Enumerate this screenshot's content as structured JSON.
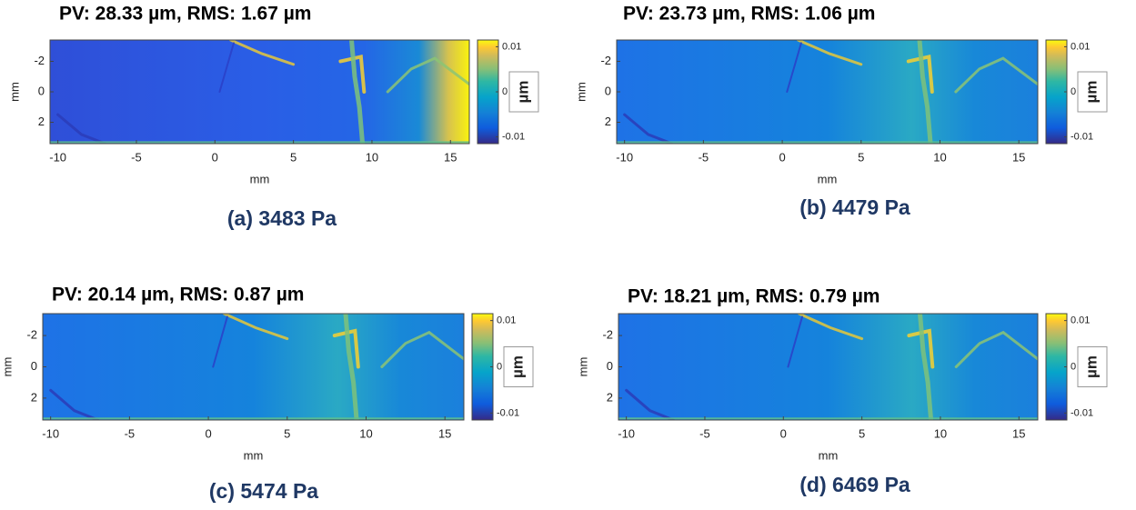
{
  "chart_data": [
    {
      "type": "heatmap",
      "title": "PV: 28.33 µm, RMS: 1.67 µm",
      "caption": "(a) 3483 Pa",
      "xlabel": "mm",
      "ylabel": "mm",
      "xlim": [
        -10.5,
        16.2
      ],
      "xticks": [
        -10,
        -5,
        0,
        5,
        10,
        15
      ],
      "ylim": [
        -3.4,
        3.4
      ],
      "yticks": [
        -2,
        0,
        2
      ],
      "y_reversed": true,
      "colorbar": {
        "label": "µm",
        "clim": [
          -0.0115,
          0.0115
        ],
        "ticks": [
          -0.01,
          0,
          0.01
        ]
      }
    },
    {
      "type": "heatmap",
      "title": "PV: 23.73 µm, RMS: 1.06 µm",
      "caption": "(b) 4479 Pa",
      "xlabel": "mm",
      "ylabel": "mm",
      "xlim": [
        -10.5,
        16.2
      ],
      "xticks": [
        -10,
        -5,
        0,
        5,
        10,
        15
      ],
      "ylim": [
        -3.4,
        3.4
      ],
      "yticks": [
        -2,
        0,
        2
      ],
      "y_reversed": true,
      "colorbar": {
        "label": "µm",
        "clim": [
          -0.0115,
          0.0115
        ],
        "ticks": [
          -0.01,
          0,
          0.01
        ]
      }
    },
    {
      "type": "heatmap",
      "title": "PV: 20.14 µm, RMS: 0.87 µm",
      "caption": "(c) 5474 Pa",
      "xlabel": "mm",
      "ylabel": "mm",
      "xlim": [
        -10.5,
        16.2
      ],
      "xticks": [
        -10,
        -5,
        0,
        5,
        10,
        15
      ],
      "ylim": [
        -3.4,
        3.4
      ],
      "yticks": [
        -2,
        0,
        2
      ],
      "y_reversed": true,
      "colorbar": {
        "label": "µm",
        "clim": [
          -0.0115,
          0.0115
        ],
        "ticks": [
          -0.01,
          0,
          0.01
        ]
      }
    },
    {
      "type": "heatmap",
      "title": "PV: 18.21 µm, RMS: 0.79 µm",
      "caption": "(d) 6469 Pa",
      "xlabel": "mm",
      "ylabel": "mm",
      "xlim": [
        -10.5,
        16.2
      ],
      "xticks": [
        -10,
        -5,
        0,
        5,
        10,
        15
      ],
      "ylim": [
        -3.4,
        3.4
      ],
      "yticks": [
        -2,
        0,
        2
      ],
      "y_reversed": true,
      "colorbar": {
        "label": "µm",
        "clim": [
          -0.0115,
          0.0115
        ],
        "ticks": [
          -0.01,
          0,
          0.01
        ]
      }
    }
  ]
}
